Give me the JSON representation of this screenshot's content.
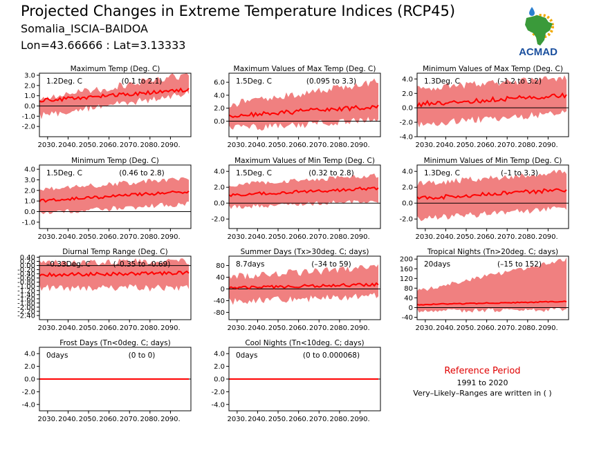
{
  "header": {
    "title": "Projected Changes in Extreme Temperature Indices (RCP45)",
    "region": "Somalia_ISCIA–BAIDOA",
    "coords": "Lon=43.66666 : Lat=3.13333"
  },
  "logo": {
    "text": "ACMAD",
    "colors": {
      "africa": "#3a9a3a",
      "sun": "#f2a900",
      "drop": "#2a7fd0",
      "text": "#1a4f9e"
    }
  },
  "reference": {
    "title": "Reference Period",
    "period": "1991 to 2020",
    "note": "Very–Likely–Ranges are written in ( )"
  },
  "colors": {
    "band": "#f08080",
    "line": "#ff0000",
    "zero": "#000000"
  },
  "chart_data": [
    {
      "type": "area",
      "title": "Maximum Temp (Deg. C)",
      "value_label": "1.2Deg. C",
      "range_label": "(0.1 to 2.1)",
      "x_ticks": [
        "2030.",
        "2040.",
        "2050.",
        "2060.",
        "2070.",
        "2080.",
        "2090."
      ],
      "xlim": [
        2026,
        2100
      ],
      "ylim": [
        -3.0,
        3.2
      ],
      "y_ticks": [
        -2.0,
        -1.0,
        0.0,
        1.0,
        2.0,
        3.0
      ],
      "y_tick_labels": [
        "-2.0",
        "-1.0",
        "0.0",
        "1.0",
        "2.0",
        "3.0"
      ],
      "mean_trend": [
        0.5,
        1.6
      ],
      "band_trend": [
        [
          -0.6,
          0.3
        ],
        [
          1.6,
          2.7
        ]
      ],
      "band_variability": 0.75,
      "line_variability": 0.18
    },
    {
      "type": "area",
      "title": "Maximum Values of Max Temp (Deg. C)",
      "value_label": "1.5Deg. C",
      "range_label": "(0.095 to 3.3)",
      "x_ticks": [
        "2030.",
        "2040.",
        "2050.",
        "2060.",
        "2070.",
        "2080.",
        "2090."
      ],
      "xlim": [
        2026,
        2100
      ],
      "ylim": [
        -2.4,
        7.4
      ],
      "y_ticks": [
        0.0,
        2.0,
        4.0,
        6.0
      ],
      "y_tick_labels": [
        "0.0",
        "2.0",
        "4.0",
        "6.0"
      ],
      "mean_trend": [
        0.8,
        2.3
      ],
      "band_trend": [
        [
          -0.6,
          2.0
        ],
        [
          0.8,
          5.5
        ]
      ],
      "band_variability": 1.2,
      "line_variability": 0.35
    },
    {
      "type": "area",
      "title": "Minimum Values of Max Temp (Deg. C)",
      "value_label": "1.3Deg. C",
      "range_label": "(–1.2 to 3.2)",
      "x_ticks": [
        "2030.",
        "2040.",
        "2050.",
        "2060.",
        "2070.",
        "2080.",
        "2090."
      ],
      "xlim": [
        2026,
        2100
      ],
      "ylim": [
        -4.0,
        4.8
      ],
      "y_ticks": [
        -4.0,
        -2.0,
        0.0,
        2.0,
        4.0
      ],
      "y_tick_labels": [
        "-4.0",
        "-2.0",
        "0.0",
        "2.0",
        "4.0"
      ],
      "mean_trend": [
        0.5,
        1.7
      ],
      "band_trend": [
        [
          -1.8,
          2.2
        ],
        [
          -0.2,
          3.6
        ]
      ],
      "band_variability": 1.0,
      "line_variability": 0.35
    },
    {
      "type": "area",
      "title": "Minimum Temp (Deg. C)",
      "value_label": "1.5Deg. C",
      "range_label": "(0.46 to 2.8)",
      "x_ticks": [
        "2030.",
        "2040.",
        "2050.",
        "2060.",
        "2070.",
        "2080.",
        "2090."
      ],
      "xlim": [
        2026,
        2100
      ],
      "ylim": [
        -1.6,
        4.4
      ],
      "y_ticks": [
        -1.0,
        0.0,
        1.0,
        2.0,
        3.0,
        4.0
      ],
      "y_tick_labels": [
        "-1.0",
        "0.0",
        "1.0",
        "2.0",
        "3.0",
        "4.0"
      ],
      "mean_trend": [
        1.0,
        1.9
      ],
      "band_trend": [
        [
          0.1,
          1.8
        ],
        [
          1.0,
          2.9
        ]
      ],
      "band_variability": 0.5,
      "line_variability": 0.15
    },
    {
      "type": "area",
      "title": "Maximum Values of Min Temp (Deg. C)",
      "value_label": "1.5Deg. C",
      "range_label": "(0.32 to 2.8)",
      "x_ticks": [
        "2030.",
        "2040.",
        "2050.",
        "2060.",
        "2070.",
        "2080.",
        "2090."
      ],
      "xlim": [
        2026,
        2100
      ],
      "ylim": [
        -3.2,
        4.8
      ],
      "y_ticks": [
        -2.0,
        0.0,
        2.0,
        4.0
      ],
      "y_tick_labels": [
        "-2.0",
        "0.0",
        "2.0",
        "4.0"
      ],
      "mean_trend": [
        1.0,
        1.9
      ],
      "band_trend": [
        [
          -0.2,
          2.0
        ],
        [
          0.6,
          3.2
        ]
      ],
      "band_variability": 0.6,
      "line_variability": 0.2
    },
    {
      "type": "area",
      "title": "Minimum Values of Min Temp (Deg. C)",
      "value_label": "1.3Deg. C",
      "range_label": "(–1 to 3.3)",
      "x_ticks": [
        "2030.",
        "2040.",
        "2050.",
        "2060.",
        "2070.",
        "2080.",
        "2090."
      ],
      "xlim": [
        2026,
        2100
      ],
      "ylim": [
        -3.2,
        4.8
      ],
      "y_ticks": [
        -2.0,
        0.0,
        2.0,
        4.0
      ],
      "y_tick_labels": [
        "-2.0",
        "0.0",
        "2.0",
        "4.0"
      ],
      "mean_trend": [
        0.6,
        1.7
      ],
      "band_trend": [
        [
          -1.6,
          2.0
        ],
        [
          -0.2,
          3.6
        ]
      ],
      "band_variability": 0.8,
      "line_variability": 0.25
    },
    {
      "type": "area",
      "title": "Diurnal Temp Range (Deg. C)",
      "value_label": "–0.33Deg. C",
      "range_label": "(–0.35 to –0.69)",
      "x_ticks": [
        "2030.",
        "2040.",
        "2050.",
        "2060.",
        "2070.",
        "2080.",
        "2090."
      ],
      "xlim": [
        2026,
        2100
      ],
      "ylim": [
        -2.6,
        0.45
      ],
      "y_ticks": [
        -2.4,
        -2.2,
        -2.0,
        -1.8,
        -1.6,
        -1.4,
        -1.2,
        -1.0,
        -0.8,
        -0.6,
        -0.4,
        -0.2,
        0.0,
        0.2,
        0.4
      ],
      "y_tick_labels": [
        "-2.40",
        "-2.20",
        "-2.00",
        "-1.80",
        "-1.60",
        "-1.40",
        "-1.20",
        "-1.00",
        "-0.80",
        "-0.60",
        "-0.40",
        "-0.20",
        "0.00",
        "0.20",
        "0.40"
      ],
      "mean_trend": [
        -0.45,
        -0.35
      ],
      "band_trend": [
        [
          -0.9,
          -0.05
        ],
        [
          -0.9,
          0.05
        ]
      ],
      "band_variability": 0.35,
      "line_variability": 0.08
    },
    {
      "type": "area",
      "title": "Summer Days (Tx>30deg. C; days)",
      "value_label": "8.7days",
      "range_label": "(–34 to 59)",
      "x_ticks": [
        "2030.",
        "2040.",
        "2050.",
        "2060.",
        "2070.",
        "2080.",
        "2090."
      ],
      "xlim": [
        2026,
        2100
      ],
      "ylim": [
        -105,
        112
      ],
      "y_ticks": [
        -80,
        -40,
        0,
        40,
        80
      ],
      "y_tick_labels": [
        "-80",
        "-40",
        "0",
        "40",
        "80"
      ],
      "mean_trend": [
        3,
        16
      ],
      "band_trend": [
        [
          -30,
          30
        ],
        [
          -12,
          60
        ]
      ],
      "band_variability": 25,
      "line_variability": 5
    },
    {
      "type": "area",
      "title": "Tropical Nights (Tn>20deg. C; days)",
      "value_label": "20days",
      "range_label": "(–15 to 152)",
      "x_ticks": [
        "2030.",
        "2040.",
        "2050.",
        "2060.",
        "2070.",
        "2080.",
        "2090."
      ],
      "xlim": [
        2026,
        2100
      ],
      "ylim": [
        -50,
        212
      ],
      "y_ticks": [
        -40,
        0,
        40,
        80,
        120,
        160,
        200
      ],
      "y_tick_labels": [
        "-40",
        "0",
        "40",
        "80",
        "120",
        "160",
        "200"
      ],
      "mean_trend": [
        12,
        25
      ],
      "band_trend": [
        [
          -5,
          60
        ],
        [
          0,
          190
        ]
      ],
      "band_variability": 18,
      "line_variability": 2
    },
    {
      "type": "line",
      "title": "Frost Days (Tn<0deg. C; days)",
      "value_label": "0days",
      "range_label": "(0 to 0)",
      "x_ticks": [
        "2030.",
        "2040.",
        "2050.",
        "2060.",
        "2070.",
        "2080.",
        "2090."
      ],
      "xlim": [
        2026,
        2100
      ],
      "ylim": [
        -5.0,
        5.0
      ],
      "y_ticks": [
        -4.0,
        -2.0,
        0.0,
        2.0,
        4.0
      ],
      "y_tick_labels": [
        "-4.0",
        "-2.0",
        "0.0",
        "2.0",
        "4.0"
      ],
      "mean_trend": [
        0,
        0
      ],
      "band_trend": [
        [
          0,
          0
        ],
        [
          0,
          0
        ]
      ],
      "band_variability": 0,
      "line_variability": 0
    },
    {
      "type": "line",
      "title": "Cool Nights (Tn<10deg. C; days)",
      "value_label": "0days",
      "range_label": "(0 to 0.000068)",
      "x_ticks": [
        "2030.",
        "2040.",
        "2050.",
        "2060.",
        "2070.",
        "2080.",
        "2090."
      ],
      "xlim": [
        2026,
        2100
      ],
      "ylim": [
        -5.0,
        5.0
      ],
      "y_ticks": [
        -4.0,
        -2.0,
        0.0,
        2.0,
        4.0
      ],
      "y_tick_labels": [
        "-4.0",
        "-2.0",
        "0.0",
        "2.0",
        "4.0"
      ],
      "mean_trend": [
        0,
        0
      ],
      "band_trend": [
        [
          0,
          0
        ],
        [
          0,
          0
        ]
      ],
      "band_variability": 0,
      "line_variability": 0
    }
  ]
}
